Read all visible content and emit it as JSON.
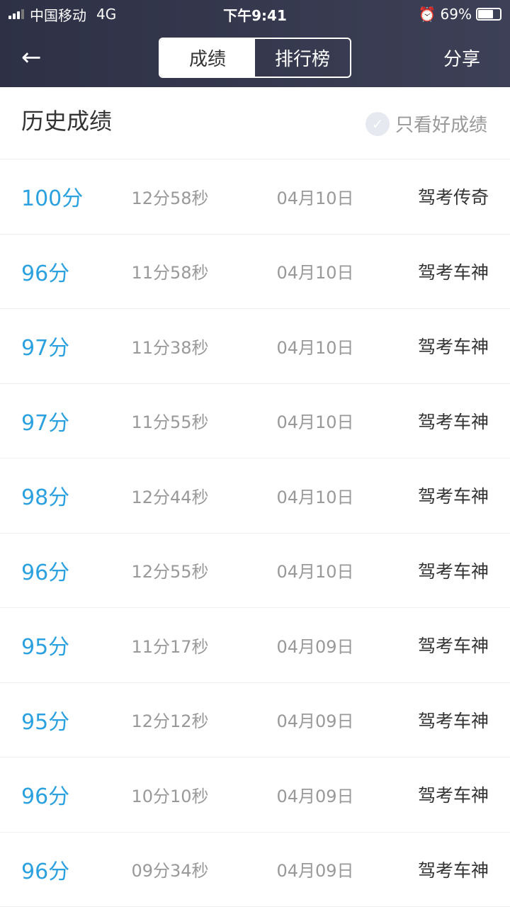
{
  "status": {
    "carrier": "中国移动",
    "network": "4G",
    "time": "下午9:41",
    "battery": "69%",
    "battery_level": 0.69
  },
  "nav": {
    "back_icon": "arrow-left",
    "tabs": [
      {
        "label": "成绩",
        "active": true
      },
      {
        "label": "排行榜",
        "active": false
      }
    ],
    "share": "分享"
  },
  "section": {
    "title": "历史成绩",
    "filter_label": "只看好成绩",
    "filter_checked": false
  },
  "rows": [
    {
      "score": "100分",
      "duration": "12分58秒",
      "date": "04月10日",
      "title": "驾考传奇"
    },
    {
      "score": "96分",
      "duration": "11分58秒",
      "date": "04月10日",
      "title": "驾考车神"
    },
    {
      "score": "97分",
      "duration": "11分38秒",
      "date": "04月10日",
      "title": "驾考车神"
    },
    {
      "score": "97分",
      "duration": "11分55秒",
      "date": "04月10日",
      "title": "驾考车神"
    },
    {
      "score": "98分",
      "duration": "12分44秒",
      "date": "04月10日",
      "title": "驾考车神"
    },
    {
      "score": "96分",
      "duration": "12分55秒",
      "date": "04月10日",
      "title": "驾考车神"
    },
    {
      "score": "95分",
      "duration": "11分17秒",
      "date": "04月09日",
      "title": "驾考车神"
    },
    {
      "score": "95分",
      "duration": "12分12秒",
      "date": "04月09日",
      "title": "驾考车神"
    },
    {
      "score": "96分",
      "duration": "10分10秒",
      "date": "04月09日",
      "title": "驾考车神"
    },
    {
      "score": "96分",
      "duration": "09分34秒",
      "date": "04月09日",
      "title": "驾考车神"
    }
  ],
  "colors": {
    "accent": "#2ba1e0",
    "header": "#33364b"
  }
}
